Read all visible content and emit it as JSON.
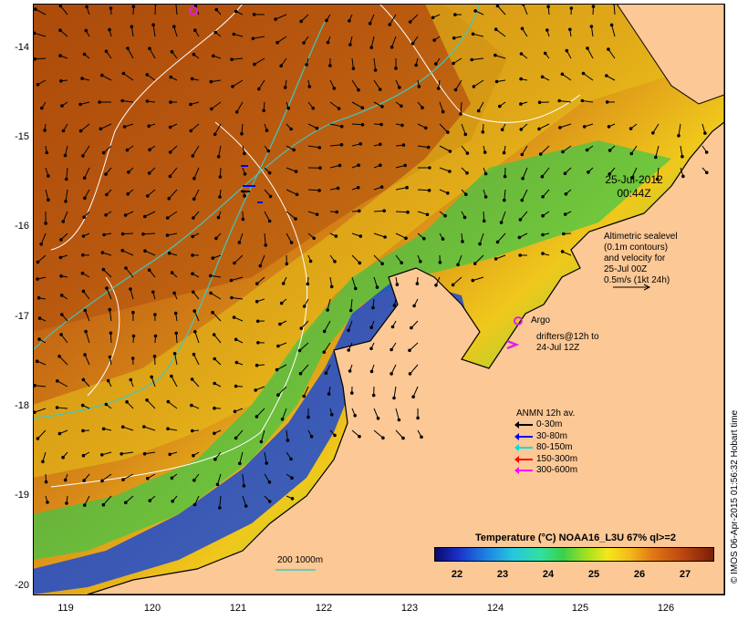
{
  "map": {
    "date_line": "25-Jul-2012",
    "time_line": "00:44Z",
    "y_ticks": [
      "-14",
      "-15",
      "-16",
      "-17",
      "-18",
      "-19",
      "-20"
    ],
    "x_ticks": [
      "119",
      "120",
      "121",
      "122",
      "123",
      "124",
      "125",
      "126"
    ],
    "lat_range": [
      -20.1,
      -13.5
    ],
    "lon_range": [
      118.65,
      126.7
    ],
    "altimetry_note": [
      "Altimetric sealevel",
      "(0.1m contours)",
      "and velocity for",
      "25-Jul 00Z",
      "0.5m/s (1kt 24h)"
    ],
    "argo_label": "Argo",
    "drifters_label": [
      "drifters@12h to",
      "24-Jul 12Z"
    ],
    "anmn_title": "ANMN 12h av.",
    "anmn_entries": [
      {
        "label": "0-30m",
        "color": "#000000"
      },
      {
        "label": "30-80m",
        "color": "#0000ff"
      },
      {
        "label": "80-150m",
        "color": "#00dddd"
      },
      {
        "label": "150-300m",
        "color": "#ff0000"
      },
      {
        "label": "300-600m",
        "color": "#ff00ff"
      }
    ],
    "isobath_label": "200  1000m",
    "colorbar_title": "Temperature (°C) NOAA16_L3U 67% ql>=2",
    "colorbar_ticks": [
      "22",
      "23",
      "24",
      "25",
      "26",
      "27"
    ],
    "colorbar_range": [
      21.5,
      27.6
    ],
    "credit": "© IMOS 06-Apr-2015 01:56:32 Hobart time",
    "colors": {
      "land": "#fcc896",
      "coast": "#000000",
      "contour": "#ffffff",
      "isobath": "#40c8c0",
      "argo": "#e020e0"
    }
  }
}
